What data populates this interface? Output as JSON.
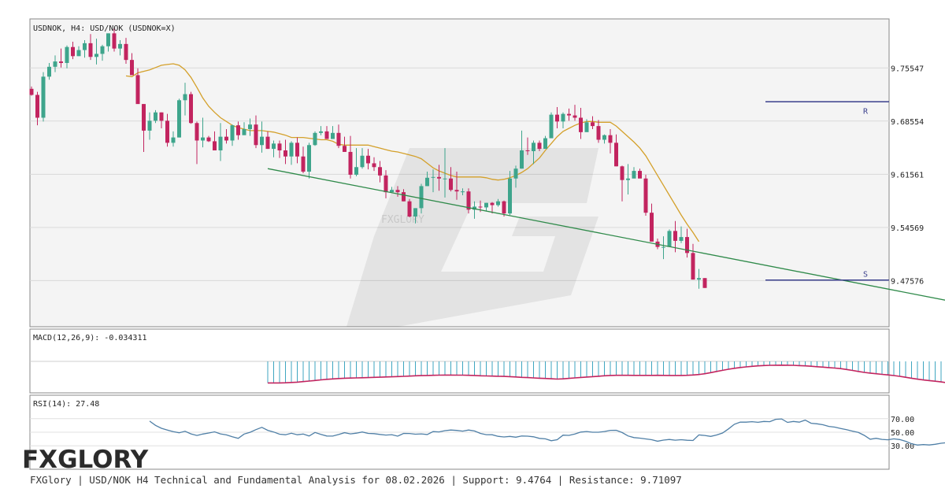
{
  "header": {
    "symbol_label": "USDNOK, H4: USD/NOK (USDNOK=X)",
    "watermark_text": "FXGLORY"
  },
  "footer": {
    "caption": "FXGlory | USD/NOK H4 Technical and Fundamental Analysis for 08.02.2026 | Support: 9.4764 | Resistance: 9.71097",
    "logo_text": "FXGLORY"
  },
  "colors": {
    "bull": "#3ea58c",
    "bear": "#c2245f",
    "ma": "#d4a02a",
    "trendline": "#2f8a4a",
    "levels": "#3a3f8c",
    "macd_hist": "#3fa6c0",
    "macd_signal": "#c2245f",
    "rsi": "#4f7fa6",
    "grid": "#d9d9d9"
  },
  "chart_data": [
    {
      "type": "candlestick",
      "title": "USDNOK, H4: USD/NOK (USDNOK=X)",
      "ylim": [
        9.415,
        9.82
      ],
      "yticks": [
        "9.75547",
        "9.68554",
        "9.61561",
        "9.54569",
        "9.47576"
      ],
      "ytick_values": [
        9.75547,
        9.68554,
        9.61561,
        9.54569,
        9.47576
      ],
      "candles": [
        [
          9.728,
          9.72,
          9.731,
          9.719
        ],
        [
          9.72,
          9.69,
          9.724,
          9.68
        ],
        [
          9.69,
          9.744,
          9.75,
          9.685
        ],
        [
          9.744,
          9.757,
          9.762,
          9.74
        ],
        [
          9.757,
          9.764,
          9.772,
          9.75
        ],
        [
          9.764,
          9.762,
          9.781,
          9.756
        ],
        [
          9.762,
          9.783,
          9.785,
          9.755
        ],
        [
          9.783,
          9.771,
          9.79,
          9.767
        ],
        [
          9.771,
          9.779,
          9.784,
          9.771
        ],
        [
          9.779,
          9.788,
          9.792,
          9.769
        ],
        [
          9.788,
          9.77,
          9.8,
          9.766
        ],
        [
          9.77,
          9.774,
          9.794,
          9.76
        ],
        [
          9.774,
          9.784,
          9.786,
          9.765
        ],
        [
          9.784,
          9.801,
          9.801,
          9.777
        ],
        [
          9.801,
          9.781,
          9.807,
          9.777
        ],
        [
          9.781,
          9.787,
          9.792,
          9.772
        ],
        [
          9.787,
          9.766,
          9.795,
          9.761
        ],
        [
          9.766,
          9.746,
          9.775,
          9.746
        ],
        [
          9.746,
          9.708,
          9.755,
          9.709
        ],
        [
          9.708,
          9.673,
          9.708,
          9.645
        ],
        [
          9.673,
          9.686,
          9.697,
          9.661
        ],
        [
          9.686,
          9.697,
          9.7,
          9.683
        ],
        [
          9.697,
          9.686,
          9.697,
          9.676
        ],
        [
          9.686,
          9.657,
          9.695,
          9.652
        ],
        [
          9.657,
          9.664,
          9.672,
          9.652
        ],
        [
          9.664,
          9.713,
          9.715,
          9.664
        ],
        [
          9.713,
          9.721,
          9.736,
          9.693
        ],
        [
          9.721,
          9.683,
          9.724,
          9.682
        ],
        [
          9.683,
          9.66,
          9.685,
          9.629
        ],
        [
          9.66,
          9.664,
          9.69,
          9.651
        ],
        [
          9.664,
          9.659,
          9.666,
          9.658
        ],
        [
          9.659,
          9.647,
          9.672,
          9.657
        ],
        [
          9.647,
          9.665,
          9.683,
          9.633
        ],
        [
          9.665,
          9.66,
          9.675,
          9.656
        ],
        [
          9.66,
          9.68,
          9.681,
          9.653
        ],
        [
          9.68,
          9.667,
          9.685,
          9.661
        ],
        [
          9.667,
          9.675,
          9.684,
          9.669
        ],
        [
          9.675,
          9.681,
          9.689,
          9.666
        ],
        [
          9.681,
          9.654,
          9.693,
          9.65
        ],
        [
          9.654,
          9.665,
          9.685,
          9.644
        ],
        [
          9.665,
          9.649,
          9.672,
          9.649
        ],
        [
          9.649,
          9.656,
          9.66,
          9.638
        ],
        [
          9.656,
          9.647,
          9.66,
          9.637
        ],
        [
          9.647,
          9.639,
          9.661,
          9.629
        ],
        [
          9.639,
          9.657,
          9.659,
          9.628
        ],
        [
          9.657,
          9.639,
          9.664,
          9.63
        ],
        [
          9.639,
          9.619,
          9.652,
          9.617
        ],
        [
          9.619,
          9.654,
          9.657,
          9.61
        ],
        [
          9.654,
          9.67,
          9.672,
          9.653
        ],
        [
          9.67,
          9.672,
          9.679,
          9.667
        ],
        [
          9.672,
          9.662,
          9.679,
          9.664
        ],
        [
          9.662,
          9.67,
          9.679,
          9.663
        ],
        [
          9.67,
          9.653,
          9.681,
          9.65
        ],
        [
          9.653,
          9.645,
          9.665,
          9.645
        ],
        [
          9.645,
          9.615,
          9.666,
          9.61
        ],
        [
          9.615,
          9.625,
          9.65,
          9.613
        ],
        [
          9.625,
          9.64,
          9.65,
          9.623
        ],
        [
          9.64,
          9.63,
          9.649,
          9.622
        ],
        [
          9.63,
          9.625,
          9.638,
          9.62
        ],
        [
          9.625,
          9.614,
          9.633,
          9.605
        ],
        [
          9.614,
          9.592,
          9.621,
          9.584
        ],
        [
          9.592,
          9.595,
          9.599,
          9.593
        ],
        [
          9.595,
          9.592,
          9.6,
          9.586
        ],
        [
          9.592,
          9.58,
          9.596,
          9.58
        ],
        [
          9.58,
          9.56,
          9.583,
          9.559
        ],
        [
          9.56,
          9.571,
          9.571,
          9.551
        ],
        [
          9.571,
          9.6,
          9.603,
          9.564
        ],
        [
          9.6,
          9.611,
          9.619,
          9.6
        ],
        [
          9.611,
          9.612,
          9.622,
          9.592
        ],
        [
          9.612,
          9.61,
          9.628,
          9.594
        ],
        [
          9.61,
          9.61,
          9.65,
          9.585
        ],
        [
          9.61,
          9.595,
          9.625,
          9.593
        ],
        [
          9.595,
          9.593,
          9.619,
          9.582
        ],
        [
          9.593,
          9.593,
          9.597,
          9.588
        ],
        [
          9.593,
          9.569,
          9.597,
          9.564
        ],
        [
          9.569,
          9.573,
          9.58,
          9.557
        ],
        [
          9.573,
          9.572,
          9.581,
          9.566
        ],
        [
          9.572,
          9.578,
          9.578,
          9.567
        ],
        [
          9.578,
          9.575,
          9.579,
          9.564
        ],
        [
          9.575,
          9.58,
          9.583,
          9.573
        ],
        [
          9.58,
          9.564,
          9.581,
          9.56
        ],
        [
          9.564,
          9.61,
          9.62,
          9.562
        ],
        [
          9.61,
          9.623,
          9.627,
          9.598
        ],
        [
          9.623,
          9.647,
          9.673,
          9.623
        ],
        [
          9.647,
          9.646,
          9.664,
          9.641
        ],
        [
          9.646,
          9.657,
          9.66,
          9.629
        ],
        [
          9.657,
          9.649,
          9.66,
          9.646
        ],
        [
          9.649,
          9.663,
          9.666,
          9.652
        ],
        [
          9.663,
          9.694,
          9.697,
          9.665
        ],
        [
          9.694,
          9.685,
          9.704,
          9.676
        ],
        [
          9.685,
          9.695,
          9.697,
          9.676
        ],
        [
          9.695,
          9.693,
          9.702,
          9.686
        ],
        [
          9.693,
          9.69,
          9.707,
          9.686
        ],
        [
          9.69,
          9.671,
          9.703,
          9.662
        ],
        [
          9.671,
          9.684,
          9.688,
          9.674
        ],
        [
          9.684,
          9.679,
          9.692,
          9.675
        ],
        [
          9.679,
          9.661,
          9.687,
          9.657
        ],
        [
          9.661,
          9.667,
          9.668,
          9.656
        ],
        [
          9.667,
          9.657,
          9.675,
          9.643
        ],
        [
          9.657,
          9.626,
          9.668,
          9.626
        ],
        [
          9.626,
          9.608,
          9.627,
          9.58
        ],
        [
          9.608,
          9.61,
          9.629,
          9.589
        ],
        [
          9.61,
          9.62,
          9.625,
          9.615
        ],
        [
          9.62,
          9.61,
          9.623,
          9.612
        ],
        [
          9.61,
          9.565,
          9.615,
          9.561
        ],
        [
          9.565,
          9.527,
          9.577,
          9.527
        ],
        [
          9.527,
          9.52,
          9.531,
          9.517
        ],
        [
          9.52,
          9.52,
          9.534,
          9.504
        ],
        [
          9.52,
          9.541,
          9.543,
          9.522
        ],
        [
          9.541,
          9.528,
          9.554,
          9.513
        ],
        [
          9.528,
          9.533,
          9.547,
          9.525
        ],
        [
          9.533,
          9.512,
          9.544,
          9.506
        ],
        [
          9.512,
          9.477,
          9.524,
          9.477
        ],
        [
          9.477,
          9.479,
          9.491,
          9.465
        ],
        [
          9.479,
          9.466,
          9.479,
          9.466
        ]
      ],
      "moving_average": [
        9.745,
        9.744,
        9.749,
        9.751,
        9.753,
        9.756,
        9.759,
        9.76,
        9.761,
        9.759,
        9.753,
        9.743,
        9.73,
        9.716,
        9.705,
        9.697,
        9.69,
        9.685,
        9.68,
        9.677,
        9.675,
        9.673,
        9.673,
        9.673,
        9.672,
        9.671,
        9.669,
        9.667,
        9.664,
        9.664,
        9.664,
        9.663,
        9.662,
        9.661,
        9.661,
        9.659,
        9.655,
        9.654,
        9.654,
        9.654,
        9.654,
        9.654,
        9.652,
        9.65,
        9.648,
        9.646,
        9.645,
        9.643,
        9.641,
        9.639,
        9.636,
        9.63,
        9.624,
        9.62,
        9.617,
        9.614,
        9.612,
        9.612,
        9.612,
        9.612,
        9.612,
        9.611,
        9.609,
        9.608,
        9.609,
        9.611,
        9.614,
        9.618,
        9.623,
        9.63,
        9.637,
        9.647,
        9.656,
        9.665,
        9.672,
        9.676,
        9.68,
        9.683,
        9.685,
        9.685,
        9.684,
        9.684,
        9.684,
        9.679,
        9.672,
        9.665,
        9.658,
        9.65,
        9.64,
        9.627,
        9.614,
        9.601,
        9.588,
        9.575,
        9.562,
        9.55,
        9.539,
        9.527
      ],
      "moving_average_start_index": 16,
      "support": 9.4764,
      "resistance": 9.71097,
      "support_label": "S",
      "resistance_label": "R",
      "trendline": [
        {
          "candle_index": 40,
          "price": 9.623
        },
        {
          "candle_index": 156,
          "price": 9.448
        }
      ],
      "grid": true
    },
    {
      "type": "macd",
      "label": "MACD(12,26,9): -0.034311",
      "values": [
        0.0,
        0.0,
        0.0,
        0.0,
        0.0,
        0.0,
        0.0,
        0.0,
        0.0,
        0.0,
        0.0,
        0.0,
        0.0,
        0.0,
        0.0,
        0.0,
        0.0,
        0.0,
        0.0,
        0.0,
        0.0,
        0.0,
        0.0,
        0.0,
        0.0,
        0.0,
        0.0,
        0.0,
        0.0,
        0.0,
        0.0,
        0.0,
        0.0,
        0.0,
        0.0,
        0.0,
        0.0,
        0.0,
        0.0,
        0.0,
        -0.0333,
        -0.0333,
        -0.0333,
        -0.033,
        -0.0326,
        -0.0321,
        -0.0312,
        -0.0303,
        -0.0295,
        -0.0285,
        -0.0277,
        -0.0271,
        -0.0265,
        -0.026,
        -0.0257,
        -0.0255,
        -0.0252,
        -0.025,
        -0.0247,
        -0.0244,
        -0.0241,
        -0.0238,
        -0.0234,
        -0.0231,
        -0.0227,
        -0.0222,
        -0.022,
        -0.0217,
        -0.0215,
        -0.0213,
        -0.0211,
        -0.0211,
        -0.0212,
        -0.0213,
        -0.0215,
        -0.0217,
        -0.0222,
        -0.0225,
        -0.0227,
        -0.0229,
        -0.0232,
        -0.0236,
        -0.0241,
        -0.0246,
        -0.025,
        -0.0255,
        -0.026,
        -0.0264,
        -0.0268,
        -0.0273,
        -0.0269,
        -0.0262,
        -0.0255,
        -0.0248,
        -0.0242,
        -0.0236,
        -0.0229,
        -0.0222,
        -0.0217,
        -0.0215,
        -0.0215,
        -0.0215,
        -0.0216,
        -0.0216,
        -0.0216,
        -0.0216,
        -0.0215,
        -0.0216,
        -0.0217,
        -0.0217,
        -0.0217,
        -0.0215,
        -0.021,
        -0.0203,
        -0.0191,
        -0.0174,
        -0.0155,
        -0.0138,
        -0.0122,
        -0.0107,
        -0.0095,
        -0.0085,
        -0.0076,
        -0.0069,
        -0.0064,
        -0.0061,
        -0.0059,
        -0.0058,
        -0.0059,
        -0.0061,
        -0.0065,
        -0.0069,
        -0.0075,
        -0.0082,
        -0.0089,
        -0.0096,
        -0.0103,
        -0.0112,
        -0.0125,
        -0.014,
        -0.0156,
        -0.017,
        -0.0181,
        -0.0191,
        -0.02,
        -0.0209,
        -0.0218,
        -0.0231,
        -0.0245,
        -0.026,
        -0.0274,
        -0.0286,
        -0.0296,
        -0.0306,
        -0.0317,
        -0.033,
        -0.0343
      ]
    },
    {
      "type": "rsi",
      "label": "RSI(14): 27.48",
      "levels": [
        "70.00",
        "50.00",
        "30.00"
      ],
      "level_values": [
        70,
        50,
        30
      ],
      "values": [
        66.4,
        60.1,
        55.8,
        53.2,
        50.8,
        49.2,
        51.4,
        47.5,
        45.2,
        47.3,
        48.8,
        50.6,
        47.6,
        46.0,
        43.3,
        40.9,
        47.3,
        49.9,
        53.8,
        57.2,
        52.8,
        50.3,
        47.1,
        46.3,
        48.5,
        46.3,
        47.3,
        44.4,
        49.6,
        46.9,
        44.4,
        44.3,
        46.6,
        49.3,
        47.6,
        48.6,
        50.4,
        48.2,
        47.9,
        46.7,
        45.8,
        46.4,
        44.2,
        48.3,
        48.1,
        47.1,
        47.6,
        46.6,
        50.9,
        50.5,
        52.3,
        53.3,
        52.7,
        51.6,
        53.2,
        51.9,
        48.3,
        46.4,
        46.3,
        43.9,
        43.0,
        43.8,
        42.7,
        44.4,
        44.2,
        43.3,
        40.9,
        40.2,
        37.5,
        39.0,
        45.7,
        45.3,
        47.3,
        50.2,
        51.0,
        50.0,
        50.0,
        51.1,
        52.8,
        52.9,
        49.5,
        44.5,
        42.1,
        41.3,
        40.1,
        39.0,
        36.7,
        38.4,
        39.3,
        38.3,
        39.0,
        38.1,
        37.8,
        46.1,
        45.2,
        43.8,
        45.9,
        48.8,
        54.9,
        61.8,
        65.0,
        64.9,
        65.6,
        64.6,
        65.9,
        65.6,
        69.1,
        69.7,
        64.5,
        65.9,
        64.9,
        67.9,
        63.2,
        62.4,
        61.1,
        58.6,
        57.6,
        55.6,
        53.7,
        51.6,
        49.6,
        45.4,
        39.6,
        41.0,
        39.4,
        38.8,
        40.2,
        39.2,
        36.6,
        33.0,
        31.1,
        31.8,
        31.2,
        32.2,
        33.7,
        34.5,
        34.4,
        33.0,
        30.5,
        28.8,
        27.5
      ]
    }
  ]
}
